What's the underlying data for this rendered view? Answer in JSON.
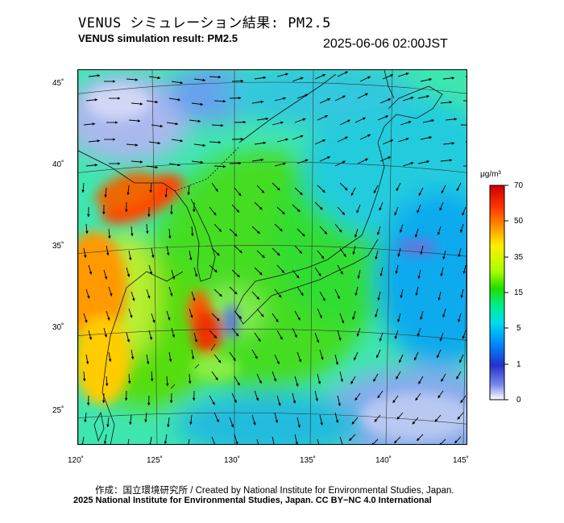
{
  "header": {
    "title_jp": "VENUS シミュレーション結果: PM2.5",
    "title_en": "VENUS simulation result: PM2.5",
    "timestamp": "2025-06-06 02:00JST"
  },
  "map": {
    "longitude_labels": [
      "120˚",
      "125˚",
      "130˚",
      "135˚",
      "140˚",
      "145˚"
    ],
    "latitude_labels": [
      "45˚",
      "40˚",
      "35˚",
      "30˚",
      "25˚"
    ],
    "variable": "PM2.5 concentration",
    "wind_vectors": true
  },
  "colorbar": {
    "unit": "μg/m³",
    "tick_labels": [
      "70",
      "50",
      "35",
      "15",
      "5",
      "1",
      "0"
    ],
    "colors": [
      "#cc0000",
      "#ff3300",
      "#ff9900",
      "#ffee00",
      "#aaff00",
      "#22dd00",
      "#00ee88",
      "#00ddee",
      "#0088ff",
      "#2233cc",
      "#7788ee",
      "#ffffff"
    ]
  },
  "footer": {
    "credit": "作成：国立環境研究所 / Created by National Institute for Environmental Studies, Japan.",
    "copyright": "2025 National Institute for Environmental Studies, Japan. CC BY−NC 4.0 International"
  }
}
